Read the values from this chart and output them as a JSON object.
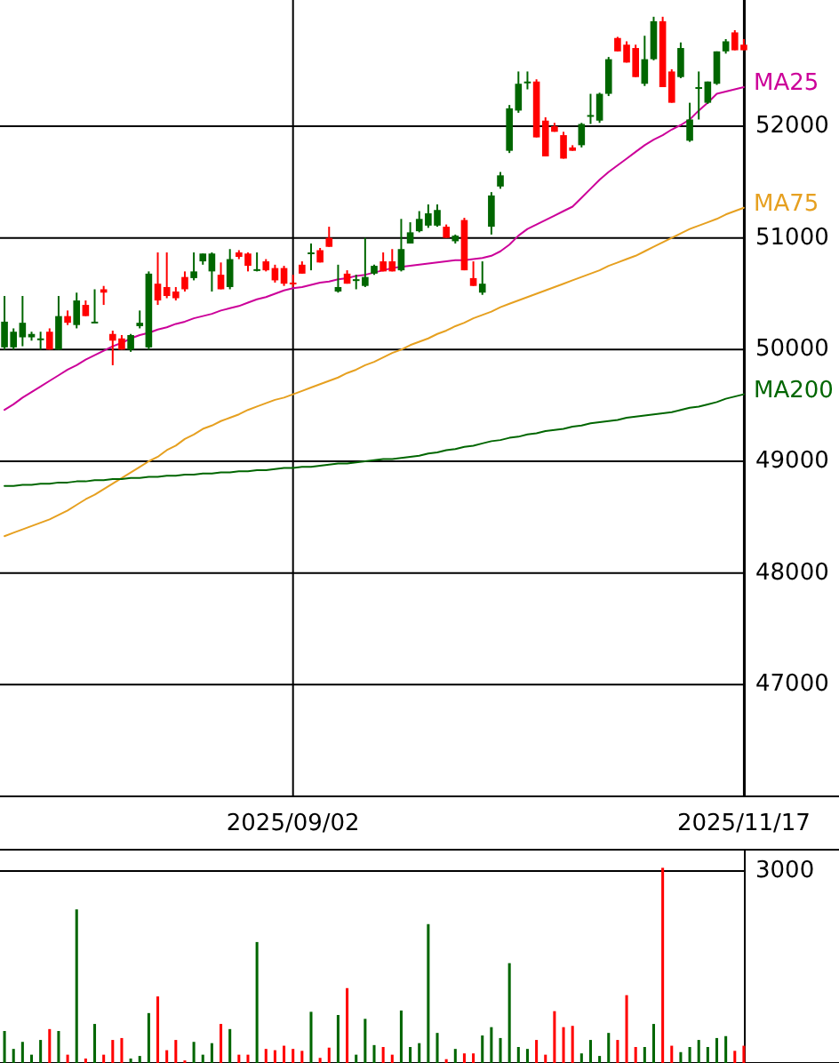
{
  "chart_data": [
    {
      "type": "candlestick",
      "categories": [
        null,
        null,
        null,
        null,
        null,
        null,
        null,
        null,
        null,
        null,
        null,
        null,
        null,
        null,
        null,
        null,
        null,
        null,
        null,
        null,
        null,
        null,
        null,
        null,
        null,
        null,
        null,
        null,
        null,
        null,
        null,
        null,
        "2025/09/02",
        null,
        null,
        null,
        null,
        null,
        null,
        null,
        null,
        null,
        null,
        null,
        null,
        null,
        null,
        null,
        null,
        null,
        null,
        null,
        null,
        null,
        null,
        null,
        null,
        null,
        null,
        null,
        null,
        null,
        null,
        null,
        null,
        null,
        null,
        null,
        null,
        null,
        null,
        null,
        null,
        null,
        null,
        null,
        null,
        null,
        null,
        null,
        null,
        null,
        "2025/11/17"
      ],
      "ohlc": [
        [
          50020,
          50480,
          50000,
          50250
        ],
        [
          50020,
          50190,
          50000,
          50160
        ],
        [
          50110,
          50480,
          50030,
          50240
        ],
        [
          50110,
          50160,
          50080,
          50140
        ],
        [
          50090,
          50160,
          50000,
          50100
        ],
        [
          50160,
          50190,
          50000,
          50000
        ],
        [
          50000,
          50480,
          50000,
          50300
        ],
        [
          50300,
          50350,
          50220,
          50240
        ],
        [
          50220,
          50510,
          50190,
          50440
        ],
        [
          50400,
          50440,
          50300,
          50300
        ],
        [
          50240,
          50540,
          50240,
          50250
        ],
        [
          50540,
          50570,
          50400,
          50510
        ],
        [
          50140,
          50170,
          49860,
          50080
        ],
        [
          50100,
          50130,
          50000,
          50000
        ],
        [
          50000,
          50140,
          49980,
          50130
        ],
        [
          50210,
          50350,
          50190,
          50240
        ],
        [
          50020,
          50700,
          50000,
          50680
        ],
        [
          50590,
          50870,
          50400,
          50440
        ],
        [
          50560,
          50870,
          50460,
          50480
        ],
        [
          50520,
          50560,
          50440,
          50460
        ],
        [
          50650,
          50700,
          50520,
          50540
        ],
        [
          50640,
          50870,
          50620,
          50700
        ],
        [
          50790,
          50860,
          50760,
          50860
        ],
        [
          50700,
          50870,
          50520,
          50860
        ],
        [
          50670,
          50780,
          50540,
          50540
        ],
        [
          50560,
          50900,
          50540,
          50810
        ],
        [
          50870,
          50890,
          50810,
          50830
        ],
        [
          50860,
          50870,
          50700,
          50750
        ],
        [
          50710,
          50870,
          50700,
          50720
        ],
        [
          50790,
          50810,
          50700,
          50710
        ],
        [
          50730,
          50760,
          50600,
          50620
        ],
        [
          50730,
          50750,
          50570,
          50590
        ],
        [
          50600,
          50670,
          50560,
          50590
        ],
        [
          50760,
          50790,
          50680,
          50680
        ],
        [
          50860,
          50950,
          50710,
          50870
        ],
        [
          50890,
          50910,
          50780,
          50780
        ],
        [
          51000,
          51100,
          50920,
          50920
        ],
        [
          50520,
          50760,
          50510,
          50560
        ],
        [
          50680,
          50710,
          50590,
          50590
        ],
        [
          50620,
          50670,
          50540,
          50630
        ],
        [
          50570,
          51000,
          50560,
          50650
        ],
        [
          50680,
          50760,
          50670,
          50750
        ],
        [
          50790,
          50870,
          50700,
          50700
        ],
        [
          50790,
          50900,
          50700,
          50700
        ],
        [
          50710,
          51170,
          50700,
          50900
        ],
        [
          50950,
          51140,
          50950,
          51050
        ],
        [
          51060,
          51240,
          51050,
          51170
        ],
        [
          51110,
          51300,
          51090,
          51220
        ],
        [
          51110,
          51300,
          51100,
          51250
        ],
        [
          51100,
          51120,
          51000,
          51000
        ],
        [
          50970,
          51030,
          50950,
          51020
        ],
        [
          51160,
          51180,
          50710,
          50710
        ],
        [
          50640,
          50790,
          50570,
          50570
        ],
        [
          50510,
          50790,
          50490,
          50590
        ],
        [
          51100,
          51410,
          51030,
          51380
        ],
        [
          51460,
          51590,
          51440,
          51560
        ],
        [
          51780,
          52190,
          51760,
          52160
        ],
        [
          52140,
          52490,
          52120,
          52380
        ],
        [
          52390,
          52490,
          52330,
          52400
        ],
        [
          52400,
          52420,
          51900,
          51900
        ],
        [
          52050,
          52080,
          51730,
          51730
        ],
        [
          52000,
          52030,
          51950,
          51950
        ],
        [
          51920,
          51950,
          51710,
          51710
        ],
        [
          51810,
          51830,
          51780,
          51780
        ],
        [
          51830,
          52030,
          51810,
          52020
        ],
        [
          52090,
          52290,
          52020,
          52100
        ],
        [
          52050,
          52300,
          52030,
          52290
        ],
        [
          52290,
          52620,
          52270,
          52600
        ],
        [
          52790,
          52800,
          52670,
          52670
        ],
        [
          52730,
          52760,
          52570,
          52570
        ],
        [
          52700,
          52730,
          52440,
          52440
        ],
        [
          52380,
          52810,
          52360,
          52600
        ],
        [
          52600,
          52980,
          52590,
          52940
        ],
        [
          52940,
          52980,
          52350,
          52350
        ],
        [
          52490,
          52510,
          52210,
          52210
        ],
        [
          52440,
          52750,
          52430,
          52700
        ],
        [
          51870,
          52210,
          51860,
          52060
        ],
        [
          52340,
          52490,
          52060,
          52350
        ],
        [
          52210,
          52400,
          52200,
          52400
        ],
        [
          52380,
          52670,
          52370,
          52670
        ],
        [
          52670,
          52780,
          52650,
          52760
        ],
        [
          52840,
          52860,
          52680,
          52680
        ],
        [
          52730,
          52780,
          52680,
          52680
        ]
      ],
      "colors": [
        "#006600",
        "#006600",
        "#006600",
        "#006600",
        "#006600",
        "#ff0000",
        "#006600",
        "#ff0000",
        "#006600",
        "#ff0000",
        "#006600",
        "#ff0000",
        "#ff0000",
        "#ff0000",
        "#006600",
        "#006600",
        "#006600",
        "#ff0000",
        "#ff0000",
        "#ff0000",
        "#ff0000",
        "#006600",
        "#006600",
        "#006600",
        "#ff0000",
        "#006600",
        "#ff0000",
        "#ff0000",
        "#006600",
        "#ff0000",
        "#ff0000",
        "#ff0000",
        "#ff0000",
        "#ff0000",
        "#006600",
        "#ff0000",
        "#ff0000",
        "#006600",
        "#ff0000",
        "#006600",
        "#006600",
        "#006600",
        "#ff0000",
        "#ff0000",
        "#006600",
        "#006600",
        "#006600",
        "#006600",
        "#006600",
        "#ff0000",
        "#006600",
        "#ff0000",
        "#ff0000",
        "#006600",
        "#006600",
        "#006600",
        "#006600",
        "#006600",
        "#006600",
        "#ff0000",
        "#ff0000",
        "#ff0000",
        "#ff0000",
        "#ff0000",
        "#006600",
        "#006600",
        "#006600",
        "#006600",
        "#ff0000",
        "#ff0000",
        "#ff0000",
        "#006600",
        "#006600",
        "#ff0000",
        "#ff0000",
        "#006600",
        "#006600",
        "#006600",
        "#006600",
        "#006600",
        "#006600",
        "#ff0000",
        "#ff0000"
      ],
      "series": [
        {
          "name": "MA25",
          "type": "line",
          "color": "#cc0099",
          "values": [
            49460,
            49510,
            49570,
            49620,
            49670,
            49720,
            49770,
            49820,
            49860,
            49910,
            49950,
            49990,
            50030,
            50060,
            50100,
            50130,
            50150,
            50180,
            50200,
            50230,
            50250,
            50280,
            50300,
            50320,
            50350,
            50370,
            50390,
            50420,
            50450,
            50470,
            50500,
            50530,
            50550,
            50560,
            50580,
            50600,
            50610,
            50630,
            50640,
            50660,
            50670,
            50690,
            50710,
            50730,
            50740,
            50750,
            50760,
            50770,
            50780,
            50790,
            50800,
            50800,
            50810,
            50820,
            50840,
            50880,
            50940,
            51020,
            51080,
            51120,
            51160,
            51200,
            51240,
            51280,
            51360,
            51440,
            51520,
            51590,
            51650,
            51710,
            51770,
            51830,
            51880,
            51920,
            51970,
            52010,
            52060,
            52140,
            52210,
            52290,
            52310,
            52330,
            52350
          ]
        },
        {
          "name": "MA75",
          "type": "line",
          "color": "#e6a020",
          "values": [
            48330,
            48360,
            48390,
            48420,
            48450,
            48480,
            48520,
            48560,
            48610,
            48660,
            48700,
            48750,
            48800,
            48850,
            48900,
            48950,
            49000,
            49040,
            49100,
            49140,
            49200,
            49240,
            49290,
            49320,
            49360,
            49390,
            49420,
            49460,
            49490,
            49520,
            49550,
            49570,
            49600,
            49630,
            49660,
            49690,
            49720,
            49750,
            49790,
            49820,
            49860,
            49890,
            49930,
            49970,
            50000,
            50040,
            50070,
            50100,
            50140,
            50170,
            50210,
            50240,
            50280,
            50310,
            50340,
            50380,
            50410,
            50440,
            50470,
            50500,
            50530,
            50560,
            50590,
            50620,
            50650,
            50680,
            50710,
            50750,
            50780,
            50810,
            50840,
            50880,
            50920,
            50960,
            51000,
            51040,
            51080,
            51110,
            51140,
            51170,
            51210,
            51240,
            51270
          ]
        },
        {
          "name": "MA200",
          "type": "line",
          "color": "#006600",
          "values": [
            48780,
            48780,
            48790,
            48790,
            48800,
            48800,
            48810,
            48810,
            48820,
            48820,
            48830,
            48830,
            48840,
            48840,
            48850,
            48850,
            48860,
            48860,
            48870,
            48870,
            48880,
            48880,
            48890,
            48890,
            48900,
            48900,
            48910,
            48910,
            48920,
            48920,
            48930,
            48940,
            48940,
            48950,
            48950,
            48960,
            48970,
            48980,
            48980,
            48990,
            49000,
            49010,
            49020,
            49020,
            49030,
            49040,
            49050,
            49070,
            49080,
            49100,
            49110,
            49130,
            49140,
            49160,
            49180,
            49190,
            49210,
            49220,
            49240,
            49250,
            49270,
            49280,
            49290,
            49310,
            49320,
            49340,
            49350,
            49360,
            49370,
            49390,
            49400,
            49410,
            49420,
            49430,
            49440,
            49460,
            49480,
            49490,
            49510,
            49530,
            49560,
            49580,
            49600
          ]
        }
      ],
      "ylim": [
        46000,
        53130
      ],
      "yticks": [
        47000,
        48000,
        49000,
        50000,
        51000,
        52000
      ],
      "grid": true
    },
    {
      "type": "bar",
      "categories": [
        null,
        null,
        null,
        null,
        null,
        null,
        null,
        null,
        null,
        null,
        null,
        null,
        null,
        null,
        null,
        null,
        null,
        null,
        null,
        null,
        null,
        null,
        null,
        null,
        null,
        null,
        null,
        null,
        null,
        null,
        null,
        null,
        null,
        null,
        null,
        null,
        null,
        null,
        null,
        null,
        null,
        null,
        null,
        null,
        null,
        null,
        null,
        null,
        null,
        null,
        null,
        null,
        null,
        null,
        null,
        null,
        null,
        null,
        null,
        null,
        null,
        null,
        null,
        null,
        null,
        null,
        null,
        null,
        null,
        null,
        null,
        null,
        null,
        null,
        null,
        null,
        null,
        null,
        null,
        null,
        null,
        null,
        null
      ],
      "values": [
        500,
        220,
        330,
        130,
        360,
        530,
        500,
        130,
        2400,
        70,
        610,
        130,
        360,
        390,
        70,
        110,
        780,
        1040,
        200,
        360,
        40,
        330,
        130,
        310,
        610,
        530,
        130,
        130,
        1890,
        220,
        200,
        270,
        220,
        190,
        800,
        80,
        240,
        750,
        1170,
        130,
        690,
        280,
        250,
        130,
        820,
        250,
        310,
        2170,
        470,
        60,
        220,
        150,
        150,
        430,
        560,
        390,
        1560,
        250,
        220,
        360,
        130,
        810,
        560,
        580,
        150,
        360,
        110,
        470,
        360,
        1060,
        250,
        250,
        610,
        3050,
        270,
        170,
        250,
        360,
        250,
        390,
        420,
        190,
        270
      ],
      "ylim": [
        0,
        3333
      ],
      "yticks": [
        {
          "value": 0,
          "label": null
        },
        3000
      ],
      "grid": "y",
      "colors": [
        "#006600",
        "#006600",
        "#006600",
        "#006600",
        "#006600",
        "#ff0000",
        "#006600",
        "#ff0000",
        "#006600",
        "#ff0000",
        "#006600",
        "#ff0000",
        "#ff0000",
        "#ff0000",
        "#006600",
        "#006600",
        "#006600",
        "#ff0000",
        "#ff0000",
        "#ff0000",
        "#ff0000",
        "#006600",
        "#006600",
        "#006600",
        "#ff0000",
        "#006600",
        "#ff0000",
        "#ff0000",
        "#006600",
        "#ff0000",
        "#ff0000",
        "#ff0000",
        "#ff0000",
        "#ff0000",
        "#006600",
        "#ff0000",
        "#ff0000",
        "#006600",
        "#ff0000",
        "#006600",
        "#006600",
        "#006600",
        "#ff0000",
        "#ff0000",
        "#006600",
        "#006600",
        "#006600",
        "#006600",
        "#006600",
        "#ff0000",
        "#006600",
        "#ff0000",
        "#ff0000",
        "#006600",
        "#006600",
        "#006600",
        "#006600",
        "#006600",
        "#006600",
        "#ff0000",
        "#ff0000",
        "#ff0000",
        "#ff0000",
        "#ff0000",
        "#006600",
        "#006600",
        "#006600",
        "#006600",
        "#ff0000",
        "#ff0000",
        "#ff0000",
        "#006600",
        "#006600",
        "#ff0000",
        "#ff0000",
        "#006600",
        "#006600",
        "#006600",
        "#006600",
        "#006600",
        "#006600",
        "#ff0000",
        "#ff0000"
      ],
      "tick_labels": "y"
    }
  ]
}
